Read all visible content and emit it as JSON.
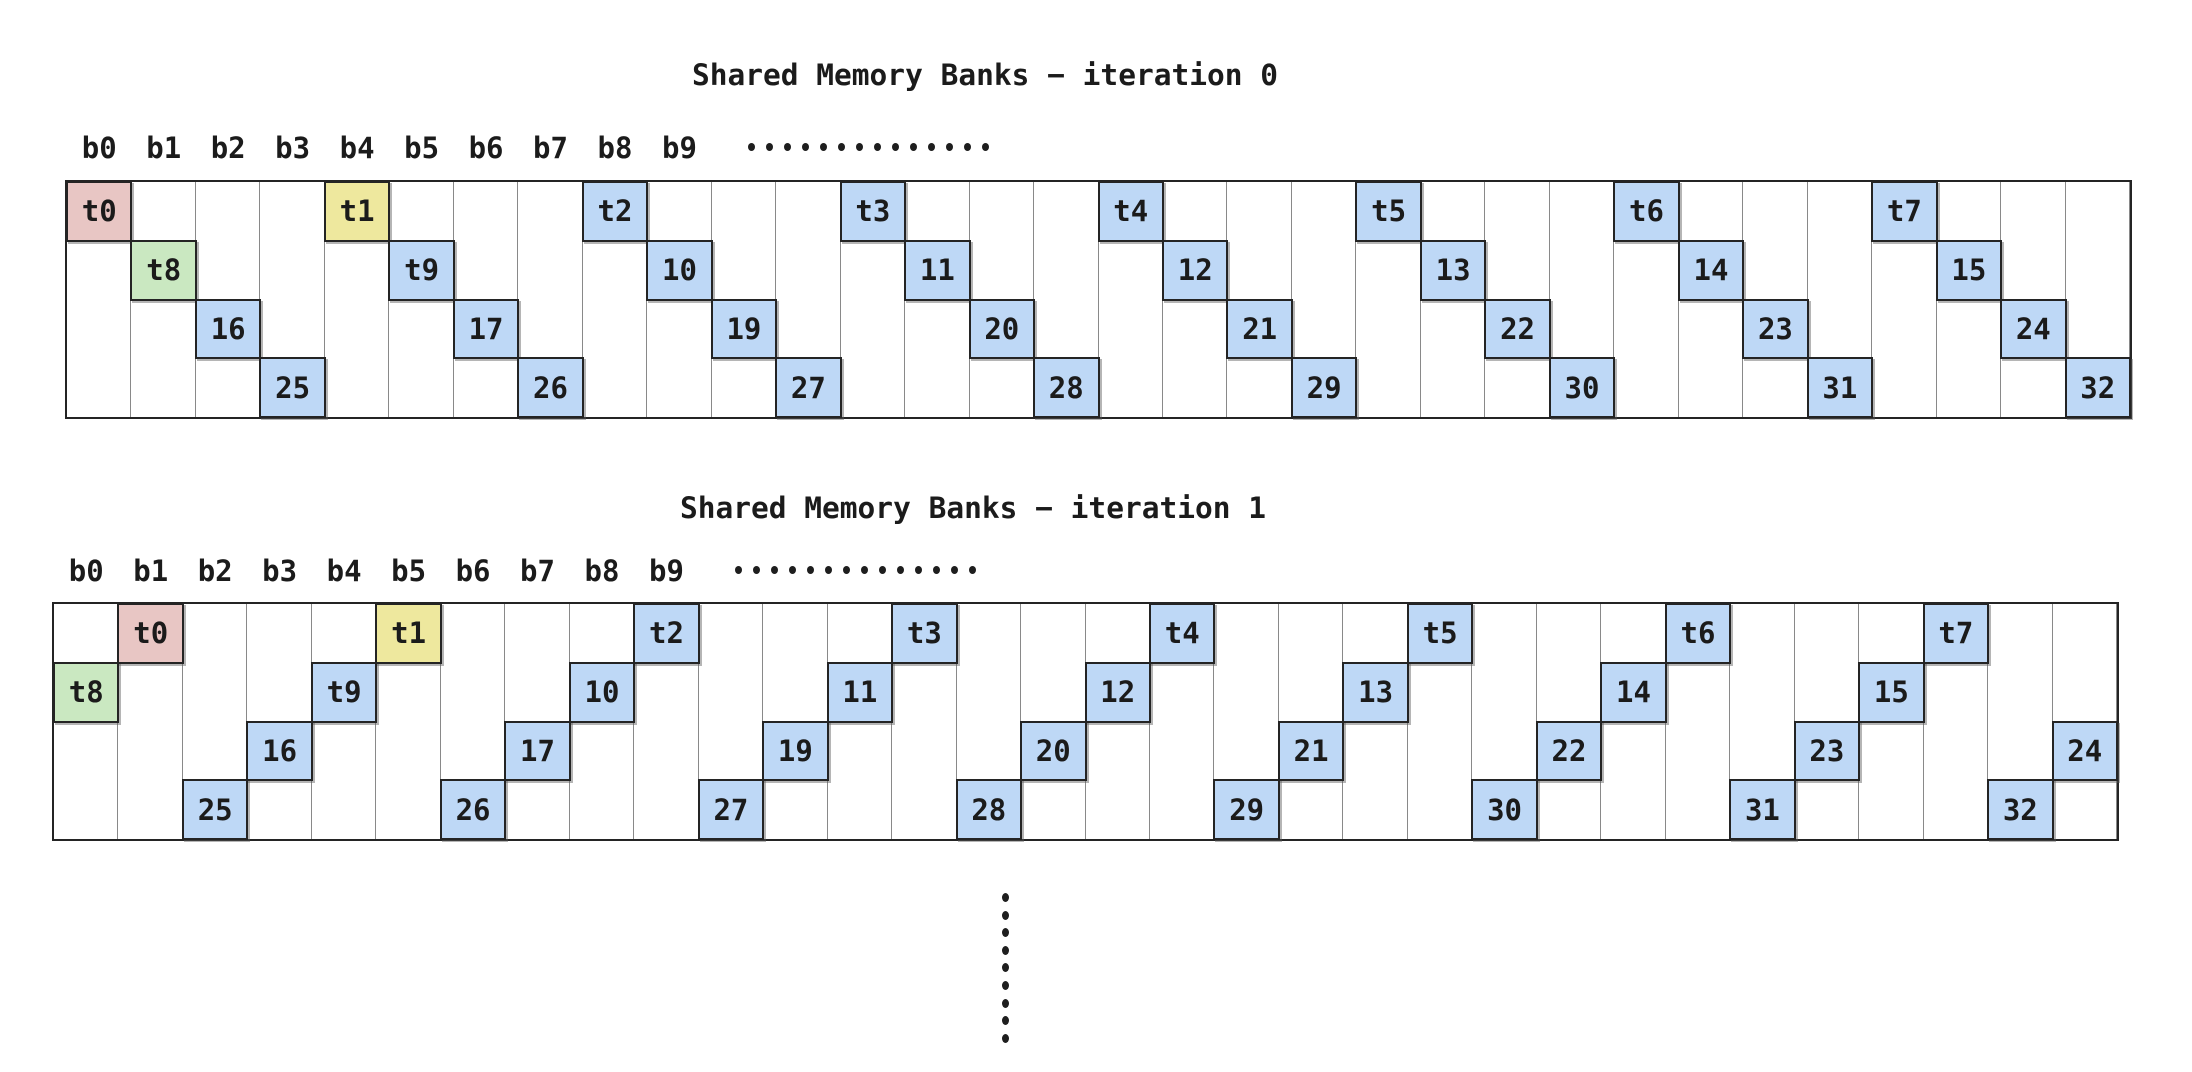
{
  "diagram": {
    "colors": {
      "pink": "#e8c6c4",
      "yellow": "#eee89e",
      "green": "#cae8c1",
      "blue": "#bed8f6",
      "border": "#242424",
      "gridline": "#898989",
      "text": "#1b1b1b",
      "background": "#ffffff"
    },
    "bank_count": 32,
    "bank_labels": [
      "b0",
      "b1",
      "b2",
      "b3",
      "b4",
      "b5",
      "b6",
      "b7",
      "b8",
      "b9"
    ],
    "bank_label_ellipsis_dots": 14,
    "continuation_ellipsis_dots": 9,
    "iterations": [
      {
        "title": "Shared Memory Banks − iteration 0",
        "cells": [
          {
            "label": "t0",
            "row": 0,
            "col": 0,
            "color": "pink"
          },
          {
            "label": "t1",
            "row": 0,
            "col": 4,
            "color": "yellow"
          },
          {
            "label": "t2",
            "row": 0,
            "col": 8,
            "color": "blue"
          },
          {
            "label": "t3",
            "row": 0,
            "col": 12,
            "color": "blue"
          },
          {
            "label": "t4",
            "row": 0,
            "col": 16,
            "color": "blue"
          },
          {
            "label": "t5",
            "row": 0,
            "col": 20,
            "color": "blue"
          },
          {
            "label": "t6",
            "row": 0,
            "col": 24,
            "color": "blue"
          },
          {
            "label": "t7",
            "row": 0,
            "col": 28,
            "color": "blue"
          },
          {
            "label": "t8",
            "row": 1,
            "col": 1,
            "color": "green"
          },
          {
            "label": "t9",
            "row": 1,
            "col": 5,
            "color": "blue"
          },
          {
            "label": "10",
            "row": 1,
            "col": 9,
            "color": "blue"
          },
          {
            "label": "11",
            "row": 1,
            "col": 13,
            "color": "blue"
          },
          {
            "label": "12",
            "row": 1,
            "col": 17,
            "color": "blue"
          },
          {
            "label": "13",
            "row": 1,
            "col": 21,
            "color": "blue"
          },
          {
            "label": "14",
            "row": 1,
            "col": 25,
            "color": "blue"
          },
          {
            "label": "15",
            "row": 1,
            "col": 29,
            "color": "blue"
          },
          {
            "label": "16",
            "row": 2,
            "col": 2,
            "color": "blue"
          },
          {
            "label": "17",
            "row": 2,
            "col": 6,
            "color": "blue"
          },
          {
            "label": "19",
            "row": 2,
            "col": 10,
            "color": "blue"
          },
          {
            "label": "20",
            "row": 2,
            "col": 14,
            "color": "blue"
          },
          {
            "label": "21",
            "row": 2,
            "col": 18,
            "color": "blue"
          },
          {
            "label": "22",
            "row": 2,
            "col": 22,
            "color": "blue"
          },
          {
            "label": "23",
            "row": 2,
            "col": 26,
            "color": "blue"
          },
          {
            "label": "24",
            "row": 2,
            "col": 30,
            "color": "blue"
          },
          {
            "label": "25",
            "row": 3,
            "col": 3,
            "color": "blue"
          },
          {
            "label": "26",
            "row": 3,
            "col": 7,
            "color": "blue"
          },
          {
            "label": "27",
            "row": 3,
            "col": 11,
            "color": "blue"
          },
          {
            "label": "28",
            "row": 3,
            "col": 15,
            "color": "blue"
          },
          {
            "label": "29",
            "row": 3,
            "col": 19,
            "color": "blue"
          },
          {
            "label": "30",
            "row": 3,
            "col": 23,
            "color": "blue"
          },
          {
            "label": "31",
            "row": 3,
            "col": 27,
            "color": "blue"
          },
          {
            "label": "32",
            "row": 3,
            "col": 31,
            "color": "blue"
          }
        ]
      },
      {
        "title": "Shared Memory Banks − iteration 1",
        "cells": [
          {
            "label": "t0",
            "row": 0,
            "col": 1,
            "color": "pink"
          },
          {
            "label": "t1",
            "row": 0,
            "col": 5,
            "color": "yellow"
          },
          {
            "label": "t2",
            "row": 0,
            "col": 9,
            "color": "blue"
          },
          {
            "label": "t3",
            "row": 0,
            "col": 13,
            "color": "blue"
          },
          {
            "label": "t4",
            "row": 0,
            "col": 17,
            "color": "blue"
          },
          {
            "label": "t5",
            "row": 0,
            "col": 21,
            "color": "blue"
          },
          {
            "label": "t6",
            "row": 0,
            "col": 25,
            "color": "blue"
          },
          {
            "label": "t7",
            "row": 0,
            "col": 29,
            "color": "blue"
          },
          {
            "label": "t8",
            "row": 1,
            "col": 0,
            "color": "green"
          },
          {
            "label": "t9",
            "row": 1,
            "col": 4,
            "color": "blue"
          },
          {
            "label": "10",
            "row": 1,
            "col": 8,
            "color": "blue"
          },
          {
            "label": "11",
            "row": 1,
            "col": 12,
            "color": "blue"
          },
          {
            "label": "12",
            "row": 1,
            "col": 16,
            "color": "blue"
          },
          {
            "label": "13",
            "row": 1,
            "col": 20,
            "color": "blue"
          },
          {
            "label": "14",
            "row": 1,
            "col": 24,
            "color": "blue"
          },
          {
            "label": "15",
            "row": 1,
            "col": 28,
            "color": "blue"
          },
          {
            "label": "16",
            "row": 2,
            "col": 3,
            "color": "blue"
          },
          {
            "label": "17",
            "row": 2,
            "col": 7,
            "color": "blue"
          },
          {
            "label": "19",
            "row": 2,
            "col": 11,
            "color": "blue"
          },
          {
            "label": "20",
            "row": 2,
            "col": 15,
            "color": "blue"
          },
          {
            "label": "21",
            "row": 2,
            "col": 19,
            "color": "blue"
          },
          {
            "label": "22",
            "row": 2,
            "col": 23,
            "color": "blue"
          },
          {
            "label": "23",
            "row": 2,
            "col": 27,
            "color": "blue"
          },
          {
            "label": "24",
            "row": 2,
            "col": 31,
            "color": "blue"
          },
          {
            "label": "25",
            "row": 3,
            "col": 2,
            "color": "blue"
          },
          {
            "label": "26",
            "row": 3,
            "col": 6,
            "color": "blue"
          },
          {
            "label": "27",
            "row": 3,
            "col": 10,
            "color": "blue"
          },
          {
            "label": "28",
            "row": 3,
            "col": 14,
            "color": "blue"
          },
          {
            "label": "29",
            "row": 3,
            "col": 18,
            "color": "blue"
          },
          {
            "label": "30",
            "row": 3,
            "col": 22,
            "color": "blue"
          },
          {
            "label": "31",
            "row": 3,
            "col": 26,
            "color": "blue"
          },
          {
            "label": "32",
            "row": 3,
            "col": 30,
            "color": "blue"
          }
        ]
      }
    ]
  }
}
